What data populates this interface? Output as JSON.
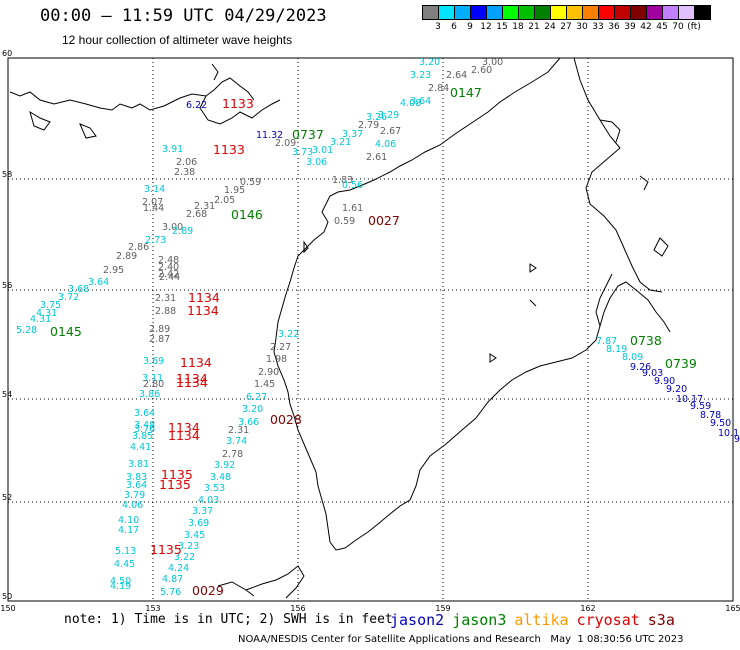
{
  "title": "00:00 – 11:59 UTC 04/29/2023",
  "subtitle": "12 hour collection of altimeter wave heights",
  "colorbar": {
    "colors": [
      "#808080",
      "#00e5ff",
      "#00b0ff",
      "#0000ff",
      "#00a0ff",
      "#00ff00",
      "#00c000",
      "#008000",
      "#ffff00",
      "#ffc000",
      "#ff8000",
      "#ff0000",
      "#c00000",
      "#800000",
      "#a000a0",
      "#c080ff",
      "#e0c0ff",
      "#000000"
    ],
    "labels": [
      "3",
      "6",
      "9",
      "12",
      "15",
      "18",
      "21",
      "24",
      "27",
      "30",
      "33",
      "36",
      "39",
      "42",
      "45",
      "70",
      "(ft)"
    ]
  },
  "axes": {
    "lat_labels": [
      "60",
      "58",
      "56",
      "54",
      "52",
      "50"
    ],
    "lon_labels": [
      "150",
      "153",
      "156",
      "159",
      "162",
      "165"
    ]
  },
  "colors": {
    "jason2": "#0000c0",
    "jason3": "#008000",
    "altika": "#ff9900",
    "cryosat": "#e00000",
    "s3a": "#800000",
    "cyan": "#00c8d8",
    "gray": "#606060"
  },
  "passes": [
    {
      "label": "0145",
      "color": "#008000"
    },
    {
      "label": "0146",
      "color": "#008000"
    },
    {
      "label": "0147",
      "color": "#008000"
    },
    {
      "label": "0737",
      "color": "#008000"
    },
    {
      "label": "0738",
      "color": "#008000"
    },
    {
      "label": "0739",
      "color": "#008000"
    },
    {
      "label": "1133",
      "color": "#e00000"
    },
    {
      "label": "1133",
      "color": "#e00000"
    },
    {
      "label": "1134",
      "color": "#e00000"
    },
    {
      "label": "1134",
      "color": "#e00000"
    },
    {
      "label": "1134",
      "color": "#e00000"
    },
    {
      "label": "1134",
      "color": "#e00000"
    },
    {
      "label": "1134",
      "color": "#e00000"
    },
    {
      "label": "1134",
      "color": "#e00000"
    },
    {
      "label": "1134",
      "color": "#e00000"
    },
    {
      "label": "1135",
      "color": "#e00000"
    },
    {
      "label": "1135",
      "color": "#e00000"
    },
    {
      "label": "1135",
      "color": "#e00000"
    },
    {
      "label": "0027",
      "color": "#800000"
    },
    {
      "label": "0028",
      "color": "#800000"
    },
    {
      "label": "0029",
      "color": "#800000"
    }
  ],
  "wave_values": [
    {
      "v": "5.28",
      "c": "cyan"
    },
    {
      "v": "4.31",
      "c": "cyan"
    },
    {
      "v": "4.31",
      "c": "cyan"
    },
    {
      "v": "3.75",
      "c": "cyan"
    },
    {
      "v": "3.72",
      "c": "cyan"
    },
    {
      "v": "3.68",
      "c": "cyan"
    },
    {
      "v": "3.64",
      "c": "cyan"
    },
    {
      "v": "2.95",
      "c": "gray"
    },
    {
      "v": "2.89",
      "c": "gray"
    },
    {
      "v": "2.86",
      "c": "gray"
    },
    {
      "v": "2.73",
      "c": "cyan"
    },
    {
      "v": "3.00",
      "c": "gray"
    },
    {
      "v": "2.68",
      "c": "gray"
    },
    {
      "v": "2.31",
      "c": "gray"
    },
    {
      "v": "2.05",
      "c": "gray"
    },
    {
      "v": "1.95",
      "c": "gray"
    },
    {
      "v": "0.59",
      "c": "gray"
    },
    {
      "v": "1.83",
      "c": "gray"
    },
    {
      "v": "0.56",
      "c": "cyan"
    },
    {
      "v": "2.61",
      "c": "gray"
    },
    {
      "v": "4.06",
      "c": "cyan"
    },
    {
      "v": "2.67",
      "c": "gray"
    },
    {
      "v": "2.79",
      "c": "gray"
    },
    {
      "v": "3.26",
      "c": "cyan"
    },
    {
      "v": "3.29",
      "c": "cyan"
    },
    {
      "v": "4.08",
      "c": "cyan"
    },
    {
      "v": "3.64",
      "c": "cyan"
    },
    {
      "v": "2.84",
      "c": "gray"
    },
    {
      "v": "2.64",
      "c": "gray"
    },
    {
      "v": "3.23",
      "c": "cyan"
    },
    {
      "v": "3.20",
      "c": "cyan"
    },
    {
      "v": "3.00",
      "c": "gray"
    },
    {
      "v": "2.60",
      "c": "gray"
    },
    {
      "v": "6.22",
      "c": "jason2"
    },
    {
      "v": "11.32",
      "c": "jason2"
    },
    {
      "v": "2.09",
      "c": "gray"
    },
    {
      "v": "3.73",
      "c": "cyan"
    },
    {
      "v": "3.06",
      "c": "cyan"
    },
    {
      "v": "3.01",
      "c": "cyan"
    },
    {
      "v": "3.21",
      "c": "cyan"
    },
    {
      "v": "3.37",
      "c": "cyan"
    },
    {
      "v": "3.91",
      "c": "cyan"
    },
    {
      "v": "2.06",
      "c": "gray"
    },
    {
      "v": "2.38",
      "c": "gray"
    },
    {
      "v": "3.14",
      "c": "cyan"
    },
    {
      "v": "2.07",
      "c": "gray"
    },
    {
      "v": "1.44",
      "c": "gray"
    },
    {
      "v": "2.89",
      "c": "cyan"
    },
    {
      "v": "2.48",
      "c": "gray"
    },
    {
      "v": "2.40",
      "c": "gray"
    },
    {
      "v": "2.42",
      "c": "gray"
    },
    {
      "v": "2.44",
      "c": "gray"
    },
    {
      "v": "2.31",
      "c": "gray"
    },
    {
      "v": "2.88",
      "c": "gray"
    },
    {
      "v": "2.89",
      "c": "gray"
    },
    {
      "v": "2.87",
      "c": "gray"
    },
    {
      "v": "3.69",
      "c": "cyan"
    },
    {
      "v": "3.11",
      "c": "cyan"
    },
    {
      "v": "2.80",
      "c": "gray"
    },
    {
      "v": "3.86",
      "c": "cyan"
    },
    {
      "v": "3.22",
      "c": "cyan"
    },
    {
      "v": "2.27",
      "c": "gray"
    },
    {
      "v": "1.98",
      "c": "gray"
    },
    {
      "v": "2.90",
      "c": "gray"
    },
    {
      "v": "1.45",
      "c": "gray"
    },
    {
      "v": "6.27",
      "c": "cyan"
    },
    {
      "v": "3.20",
      "c": "cyan"
    },
    {
      "v": "3.66",
      "c": "cyan"
    },
    {
      "v": "2.31",
      "c": "gray"
    },
    {
      "v": "3.74",
      "c": "cyan"
    },
    {
      "v": "2.78",
      "c": "gray"
    },
    {
      "v": "3.92",
      "c": "cyan"
    },
    {
      "v": "3.48",
      "c": "cyan"
    },
    {
      "v": "3.53",
      "c": "cyan"
    },
    {
      "v": "4.03",
      "c": "cyan"
    },
    {
      "v": "3.37",
      "c": "cyan"
    },
    {
      "v": "3.69",
      "c": "cyan"
    },
    {
      "v": "3.45",
      "c": "cyan"
    },
    {
      "v": "3.23",
      "c": "cyan"
    },
    {
      "v": "3.22",
      "c": "cyan"
    },
    {
      "v": "4.24",
      "c": "cyan"
    },
    {
      "v": "4.87",
      "c": "cyan"
    },
    {
      "v": "5.76",
      "c": "cyan"
    },
    {
      "v": "1.61",
      "c": "gray"
    },
    {
      "v": "0.59",
      "c": "gray"
    },
    {
      "v": "3.64",
      "c": "cyan"
    },
    {
      "v": "3.48",
      "c": "cyan"
    },
    {
      "v": "3.76",
      "c": "cyan"
    },
    {
      "v": "3.85",
      "c": "cyan"
    },
    {
      "v": "4.41",
      "c": "cyan"
    },
    {
      "v": "3.81",
      "c": "cyan"
    },
    {
      "v": "3.83",
      "c": "cyan"
    },
    {
      "v": "3.64",
      "c": "cyan"
    },
    {
      "v": "3.79",
      "c": "cyan"
    },
    {
      "v": "4.06",
      "c": "cyan"
    },
    {
      "v": "4.10",
      "c": "cyan"
    },
    {
      "v": "4.17",
      "c": "cyan"
    },
    {
      "v": "5.13",
      "c": "cyan"
    },
    {
      "v": "4.45",
      "c": "cyan"
    },
    {
      "v": "4.50",
      "c": "cyan"
    },
    {
      "v": "4.19",
      "c": "cyan"
    },
    {
      "v": "7.87",
      "c": "cyan"
    },
    {
      "v": "8.19",
      "c": "cyan"
    },
    {
      "v": "8.09",
      "c": "cyan"
    },
    {
      "v": "9.26",
      "c": "jason2"
    },
    {
      "v": "9.03",
      "c": "jason2"
    },
    {
      "v": "9.90",
      "c": "jason2"
    },
    {
      "v": "9.20",
      "c": "jason2"
    },
    {
      "v": "10.17",
      "c": "jason2"
    },
    {
      "v": "9.59",
      "c": "jason2"
    },
    {
      "v": "8.78",
      "c": "jason2"
    },
    {
      "v": "9.50",
      "c": "jason2"
    },
    {
      "v": "10.1",
      "c": "jason2"
    },
    {
      "v": "9",
      "c": "jason2"
    }
  ],
  "footer": {
    "note": "note: 1) Time is in UTC; 2) SWH is in feet",
    "legend": [
      {
        "name": "jason2",
        "color": "#0000c0"
      },
      {
        "name": "jason3",
        "color": "#008000"
      },
      {
        "name": "altika",
        "color": "#ff9900"
      },
      {
        "name": "cryosat",
        "color": "#e00000"
      },
      {
        "name": "s3a",
        "color": "#800000"
      }
    ],
    "credit": "NOAA/NESDIS Center for Satellite Applications and Research   May  1 08:30:56 UTC 2023"
  }
}
